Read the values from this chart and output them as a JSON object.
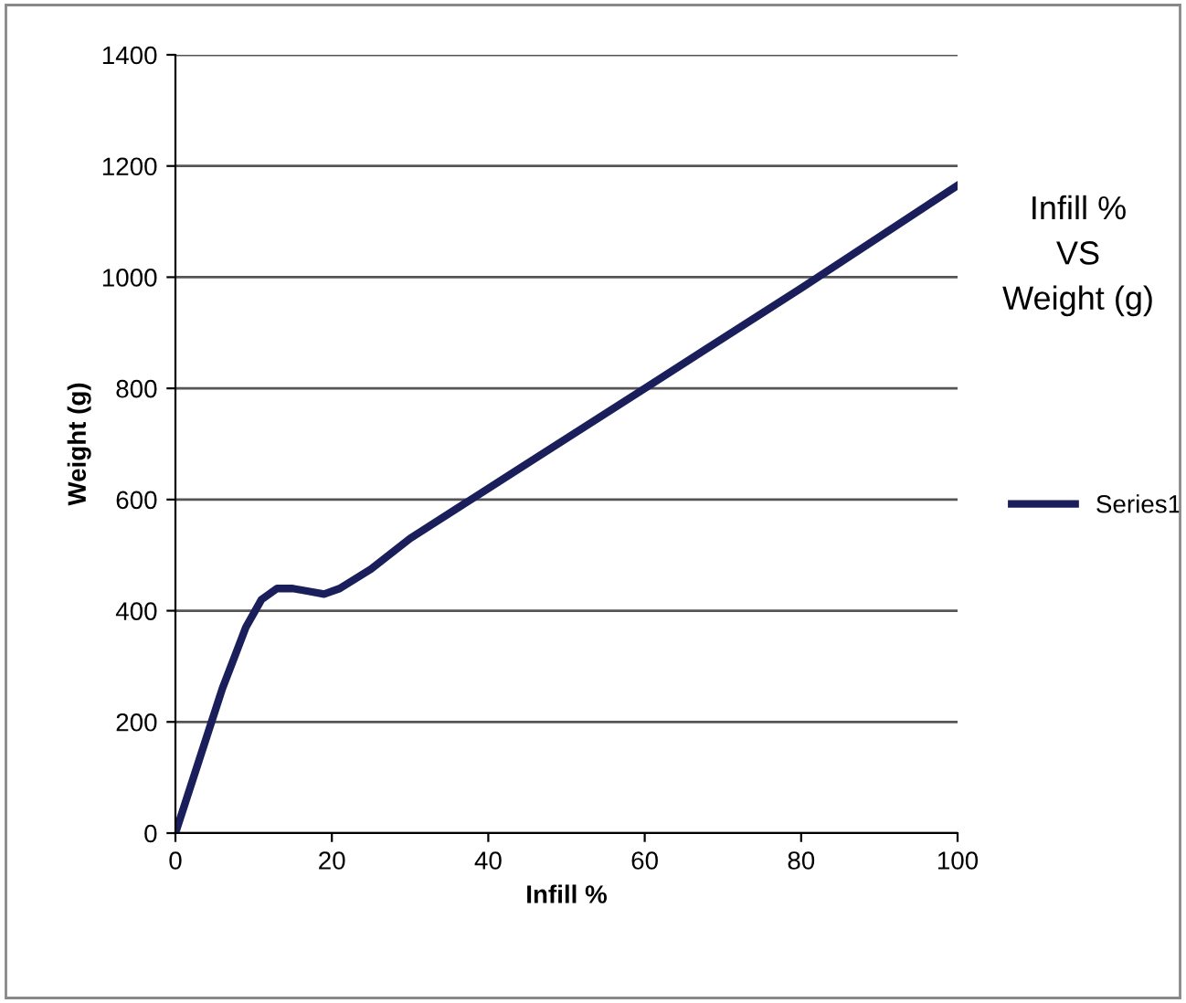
{
  "chart_data": {
    "type": "line",
    "title": "Infill %\nVS\nWeight (g)",
    "xlabel": "Infill %",
    "ylabel": "Weight (g)",
    "x": [
      0,
      3,
      6,
      9,
      11,
      13,
      15,
      17,
      19,
      21,
      25,
      30,
      40,
      60,
      80,
      100
    ],
    "series": [
      {
        "name": "Series1",
        "color": "#1a1f5c",
        "values": [
          0,
          130,
          260,
          370,
          420,
          440,
          440,
          435,
          430,
          440,
          475,
          530,
          620,
          800,
          980,
          1165
        ]
      }
    ],
    "xlim": [
      0,
      100
    ],
    "xticks": [
      0,
      20,
      40,
      60,
      80,
      100
    ],
    "ylim": [
      0,
      1400
    ],
    "yticks": [
      0,
      200,
      400,
      600,
      800,
      1000,
      1200,
      1400
    ],
    "grid": "y",
    "legend": "right",
    "marker": "none",
    "line_style": "solid"
  }
}
